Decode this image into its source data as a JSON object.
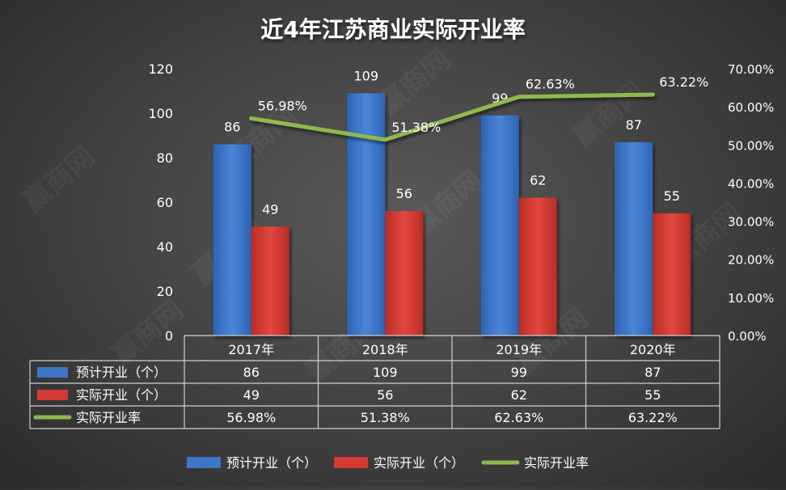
{
  "chart_data": {
    "type": "bar",
    "title": "近4年江苏商业实际开业率",
    "categories": [
      "2017年",
      "2018年",
      "2019年",
      "2020年"
    ],
    "series": [
      {
        "name": "预计开业（个）",
        "kind": "bar",
        "axis": "left",
        "color": "#3f76c6",
        "values": [
          86,
          109,
          99,
          87
        ],
        "labels": [
          "86",
          "109",
          "99",
          "87"
        ]
      },
      {
        "name": "实际开业（个）",
        "kind": "bar",
        "axis": "left",
        "color": "#d23a34",
        "values": [
          49,
          56,
          62,
          55
        ],
        "labels": [
          "49",
          "56",
          "62",
          "55"
        ]
      },
      {
        "name": "实际开业率",
        "kind": "line",
        "axis": "right",
        "color": "#8fb84e",
        "values": [
          56.98,
          51.38,
          62.63,
          63.22
        ],
        "labels": [
          "56.98%",
          "51.38%",
          "62.63%",
          "63.22%"
        ]
      }
    ],
    "y_left": {
      "min": 0,
      "max": 120,
      "ticks": [
        "0",
        "20",
        "40",
        "60",
        "80",
        "100",
        "120"
      ]
    },
    "y_right": {
      "min": 0,
      "max": 70,
      "ticks": [
        "0.00%",
        "10.00%",
        "20.00%",
        "30.00%",
        "40.00%",
        "50.00%",
        "60.00%",
        "70.00%"
      ]
    },
    "grid": false,
    "legend_position": "bottom",
    "data_table": true
  },
  "watermark": "赢商网"
}
